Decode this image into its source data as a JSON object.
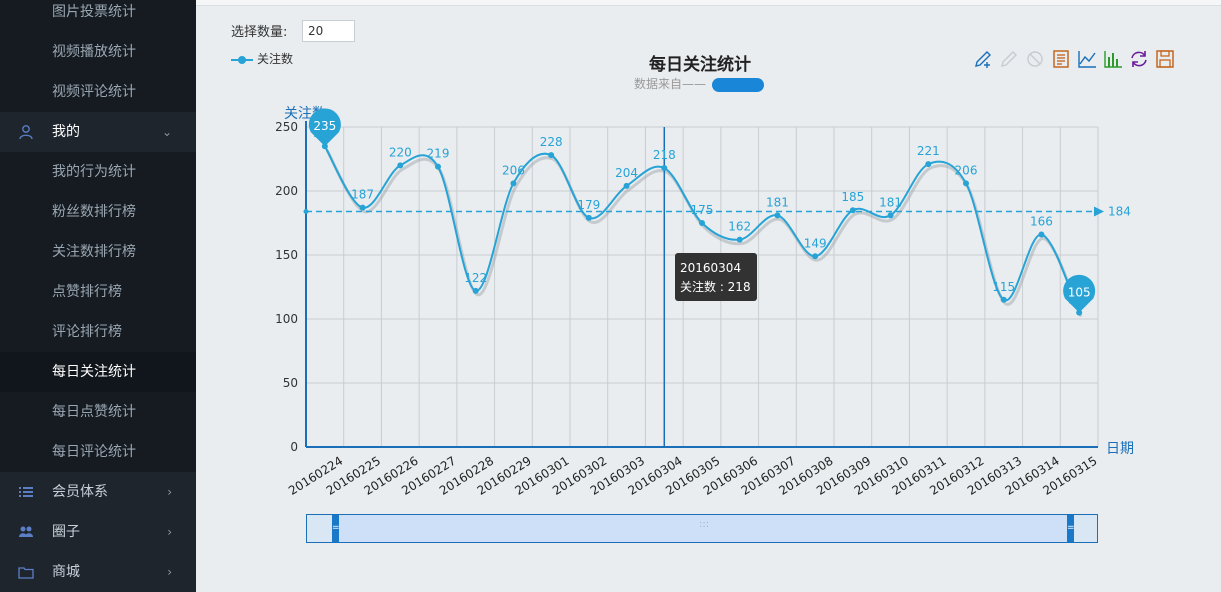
{
  "sidebar": {
    "items": [
      {
        "label": "图片投票统计"
      },
      {
        "label": "视频播放统计"
      },
      {
        "label": "视频评论统计"
      },
      {
        "label": "我的"
      },
      {
        "label": "我的行为统计"
      },
      {
        "label": "粉丝数排行榜"
      },
      {
        "label": "关注数排行榜"
      },
      {
        "label": "点赞排行榜"
      },
      {
        "label": "评论排行榜"
      },
      {
        "label": "每日关注统计"
      },
      {
        "label": "每日点赞统计"
      },
      {
        "label": "每日评论统计"
      },
      {
        "label": "会员体系"
      },
      {
        "label": "圈子"
      },
      {
        "label": "商城"
      }
    ]
  },
  "controls": {
    "count_label": "选择数量:",
    "count_value": "20"
  },
  "tooltip": {
    "date": "20160304",
    "text": "关注数 : 218"
  },
  "colors": {
    "series": "#27a3d6",
    "sidebar_bg": "#1e252d",
    "accent": "#1a78c9"
  },
  "icons": [
    "pencil-plus-icon",
    "pencil-icon",
    "trash-icon",
    "data-view-icon",
    "line-chart-icon",
    "bar-chart-icon",
    "refresh-icon",
    "save-icon"
  ],
  "chart_data": {
    "type": "line",
    "title": "每日关注统计",
    "subtitle": "数据来自——",
    "ylabel": "关注数",
    "xlabel": "日期",
    "ylim": [
      0,
      250
    ],
    "yticks": [
      0,
      50,
      100,
      150,
      200,
      250
    ],
    "categories": [
      "20160224",
      "20160225",
      "20160226",
      "20160227",
      "20160228",
      "20160229",
      "20160301",
      "20160302",
      "20160303",
      "20160304",
      "20160305",
      "20160306",
      "20160307",
      "20160308",
      "20160309",
      "20160310",
      "20160311",
      "20160312",
      "20160313",
      "20160314",
      "20160315"
    ],
    "series": [
      {
        "name": "关注数",
        "values": [
          235,
          187,
          220,
          219,
          122,
          206,
          228,
          179,
          204,
          218,
          175,
          162,
          181,
          149,
          185,
          181,
          221,
          206,
          115,
          166,
          105
        ]
      }
    ],
    "markpoint": {
      "max": 235,
      "min": 105
    },
    "markline": {
      "average": 184
    },
    "legend": "top-left",
    "grid": true
  }
}
